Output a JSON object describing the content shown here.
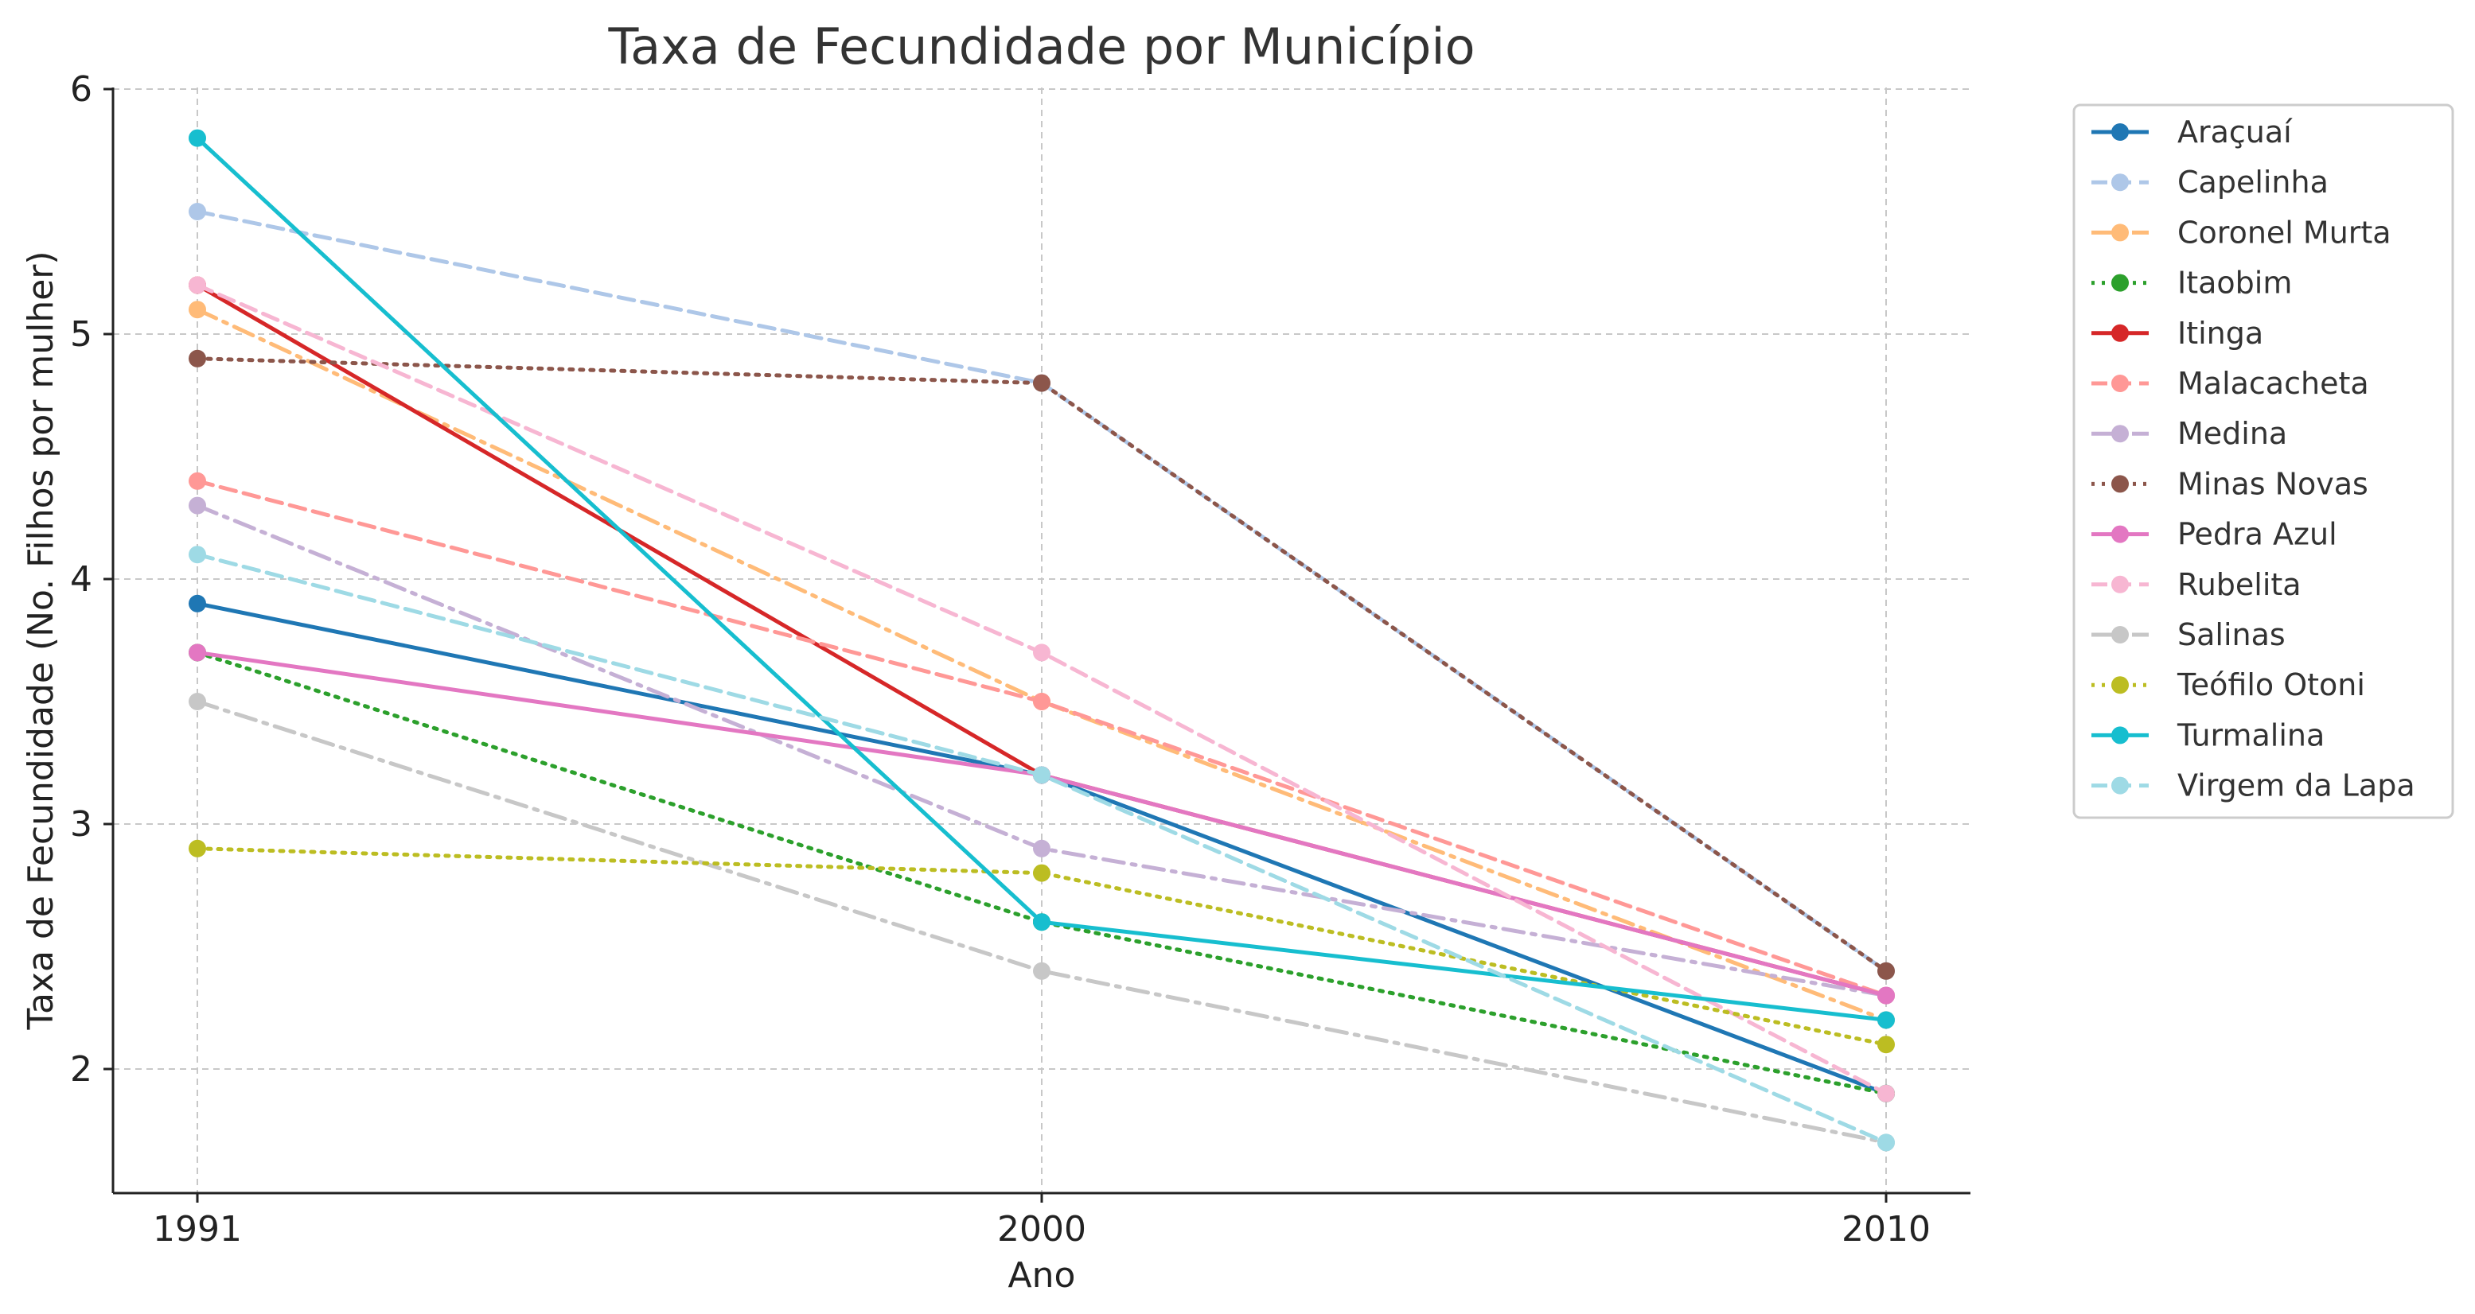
{
  "chart_data": {
    "type": "line",
    "title": "Taxa de Fecundidade por Município",
    "xlabel": "Ano",
    "ylabel": "Taxa de Fecundidade (No. Filhos por mulher)",
    "categories": [
      "1991",
      "2000",
      "2010"
    ],
    "yticks": [
      "2",
      "3",
      "4",
      "5",
      "6"
    ],
    "ylim": [
      1.5,
      6.0
    ],
    "grid": true,
    "legend_position": "outside-right",
    "series": [
      {
        "name": "Araçuaí",
        "values": [
          3.9,
          3.2,
          1.9
        ],
        "color": "#1f77b4",
        "style": "solid"
      },
      {
        "name": "Capelinha",
        "values": [
          5.5,
          4.8,
          2.4
        ],
        "color": "#aec7e8",
        "style": "dashed"
      },
      {
        "name": "Coronel Murta",
        "values": [
          5.1,
          3.5,
          2.2
        ],
        "color": "#ffbb78",
        "style": "dashdot"
      },
      {
        "name": "Itaobim",
        "values": [
          3.7,
          2.6,
          1.9
        ],
        "color": "#2ca02c",
        "style": "dotted"
      },
      {
        "name": "Itinga",
        "values": [
          5.2,
          3.2,
          2.3
        ],
        "color": "#d62728",
        "style": "solid"
      },
      {
        "name": "Malacacheta",
        "values": [
          4.4,
          3.5,
          2.3
        ],
        "color": "#ff9896",
        "style": "dashed"
      },
      {
        "name": "Medina",
        "values": [
          4.3,
          2.9,
          2.3
        ],
        "color": "#c5b0d5",
        "style": "dashdot"
      },
      {
        "name": "Minas Novas",
        "values": [
          4.9,
          4.8,
          2.4
        ],
        "color": "#8c564b",
        "style": "dotted"
      },
      {
        "name": "Pedra Azul",
        "values": [
          3.7,
          3.2,
          2.3
        ],
        "color": "#e377c2",
        "style": "solid"
      },
      {
        "name": "Rubelita",
        "values": [
          5.2,
          3.7,
          1.9
        ],
        "color": "#f7b6d2",
        "style": "dashed"
      },
      {
        "name": "Salinas",
        "values": [
          3.5,
          2.4,
          1.7
        ],
        "color": "#c7c7c7",
        "style": "dashdot"
      },
      {
        "name": "Teófilo Otoni",
        "values": [
          2.9,
          2.8,
          2.1
        ],
        "color": "#bcbd22",
        "style": "dotted"
      },
      {
        "name": "Turmalina",
        "values": [
          5.8,
          2.6,
          2.2
        ],
        "color": "#17becf",
        "style": "solid"
      },
      {
        "name": "Virgem da Lapa",
        "values": [
          4.1,
          3.2,
          1.7
        ],
        "color": "#9edae5",
        "style": "dashed"
      }
    ]
  }
}
